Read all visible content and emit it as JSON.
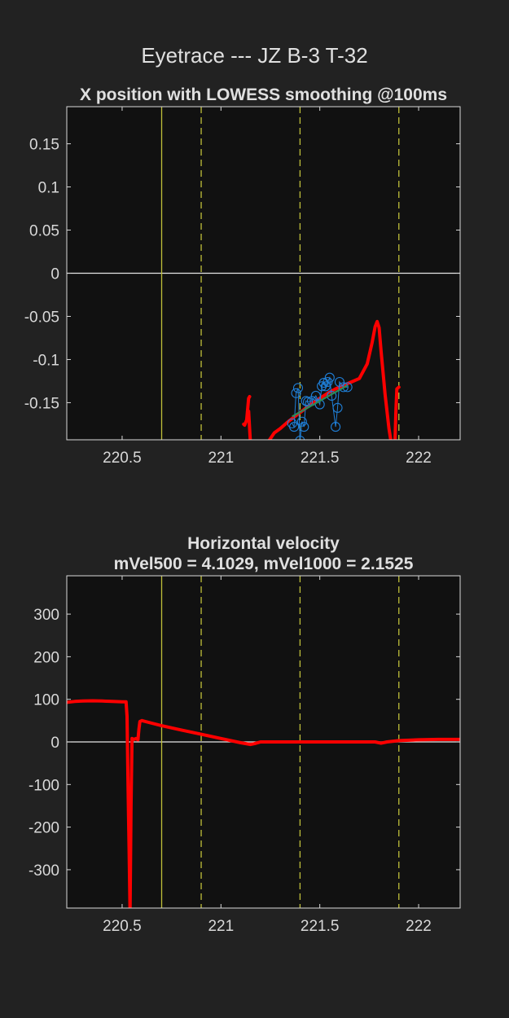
{
  "figure": {
    "title": "Eyetrace --- JZ B-3 T-32",
    "background": "#222222",
    "axes_background": "#111111"
  },
  "colors": {
    "red_trace": "#ff0000",
    "raw_samples": "#1f7fd8",
    "fit_line": "#2e8b57",
    "event_lines": "#bfbf3a",
    "zero_line": "#e6e6e6"
  },
  "chart_data": [
    {
      "type": "line",
      "title": "X position with LOWESS smoothing @100ms",
      "xlabel": "",
      "ylabel": "",
      "xlim": [
        220.22,
        222.21
      ],
      "ylim": [
        -0.193,
        0.193
      ],
      "xticks": [
        220.5,
        221,
        221.5,
        222
      ],
      "xtick_labels": [
        "220.5",
        "221",
        "221.5",
        "222"
      ],
      "yticks": [
        0.15,
        0.1,
        0.05,
        0,
        -0.05,
        -0.1,
        -0.15
      ],
      "ytick_labels": [
        "0.15",
        "0.1",
        "0.05",
        "0",
        "-0.05",
        "-0.1",
        "-0.15"
      ],
      "grid": false,
      "zero_line": 0,
      "event_lines": [
        {
          "x": 220.7,
          "style": "solid"
        },
        {
          "x": 220.9,
          "style": "dashed"
        },
        {
          "x": 221.4,
          "style": "dashed"
        },
        {
          "x": 221.9,
          "style": "dashed"
        }
      ],
      "series": [
        {
          "kind": "smoothed_segment",
          "x": [
            221.115,
            221.12,
            221.13,
            221.14,
            221.145
          ],
          "y": [
            -0.175,
            -0.176,
            -0.17,
            -0.145,
            -0.143
          ]
        },
        {
          "kind": "smoothed_segment",
          "x": [
            221.14,
            221.145,
            221.15
          ],
          "y": [
            -0.16,
            -0.18,
            -0.2
          ]
        },
        {
          "kind": "smoothed_segment",
          "x": [
            221.24,
            221.27,
            221.3,
            221.34,
            221.38,
            221.42,
            221.46,
            221.5,
            221.54,
            221.58,
            221.62,
            221.66,
            221.7,
            221.74,
            221.765,
            221.78,
            221.79,
            221.8,
            221.81,
            221.83,
            221.85,
            221.86,
            221.865,
            221.87
          ],
          "y": [
            -0.195,
            -0.185,
            -0.18,
            -0.172,
            -0.165,
            -0.158,
            -0.151,
            -0.145,
            -0.139,
            -0.134,
            -0.13,
            -0.126,
            -0.122,
            -0.105,
            -0.08,
            -0.062,
            -0.056,
            -0.063,
            -0.09,
            -0.14,
            -0.18,
            -0.195,
            -0.2,
            -0.2
          ]
        },
        {
          "kind": "smoothed_segment",
          "x": [
            221.88,
            221.885,
            221.89,
            221.9
          ],
          "y": [
            -0.2,
            -0.16,
            -0.134,
            -0.132
          ]
        },
        {
          "kind": "raw_samples",
          "x": [
            221.36,
            221.37,
            221.38,
            221.39,
            221.4,
            221.41,
            221.42,
            221.43,
            221.44,
            221.46,
            221.48,
            221.5,
            221.51,
            221.52,
            221.53,
            221.54,
            221.55,
            221.56,
            221.58,
            221.59,
            221.6,
            221.62,
            221.64
          ],
          "y": [
            -0.174,
            -0.178,
            -0.139,
            -0.133,
            -0.194,
            -0.172,
            -0.178,
            -0.148,
            -0.149,
            -0.148,
            -0.142,
            -0.152,
            -0.131,
            -0.127,
            -0.131,
            -0.126,
            -0.121,
            -0.142,
            -0.178,
            -0.156,
            -0.126,
            -0.132,
            -0.132
          ]
        },
        {
          "kind": "linear_fit",
          "x": [
            221.36,
            221.64
          ],
          "y": [
            -0.166,
            -0.13
          ]
        }
      ]
    },
    {
      "type": "line",
      "title": "Horizontal velocity",
      "subtitle": "mVel500 = 4.1029, mVel1000 = 2.1525",
      "xlabel": "",
      "ylabel": "",
      "xlim": [
        220.22,
        222.21
      ],
      "ylim": [
        -390,
        390
      ],
      "xticks": [
        220.5,
        221,
        221.5,
        222
      ],
      "xtick_labels": [
        "220.5",
        "221",
        "221.5",
        "222"
      ],
      "yticks": [
        300,
        200,
        100,
        0,
        -100,
        -200,
        -300
      ],
      "ytick_labels": [
        "300",
        "200",
        "100",
        "0",
        "-100",
        "-200",
        "-300"
      ],
      "grid": false,
      "zero_line": 0,
      "event_lines": [
        {
          "x": 220.7,
          "style": "solid"
        },
        {
          "x": 220.9,
          "style": "dashed"
        },
        {
          "x": 221.4,
          "style": "dashed"
        },
        {
          "x": 221.9,
          "style": "dashed"
        }
      ],
      "series": [
        {
          "kind": "velocity",
          "x": [
            220.22,
            220.26,
            220.3,
            220.35,
            220.4,
            220.45,
            220.5,
            220.52,
            220.525,
            220.53,
            220.535,
            220.54,
            220.545,
            220.55,
            220.56,
            220.57,
            220.58,
            220.585,
            220.59,
            220.6,
            220.65,
            220.7,
            220.8,
            220.9,
            221.0,
            221.1,
            221.15,
            221.17,
            221.2,
            221.23,
            221.3,
            221.5,
            221.7,
            221.78,
            221.81,
            221.84,
            221.9,
            222.0,
            222.1,
            222.21
          ],
          "y": [
            93,
            95,
            96,
            96.5,
            96,
            95,
            94,
            94,
            60,
            -100,
            -250,
            -400,
            -150,
            8,
            6,
            8,
            5,
            30,
            48,
            50,
            44,
            38,
            28,
            18,
            8,
            -2,
            -6,
            -4,
            0,
            0,
            0,
            0,
            0,
            0,
            -3,
            0,
            3,
            5,
            6,
            6
          ]
        }
      ]
    }
  ]
}
